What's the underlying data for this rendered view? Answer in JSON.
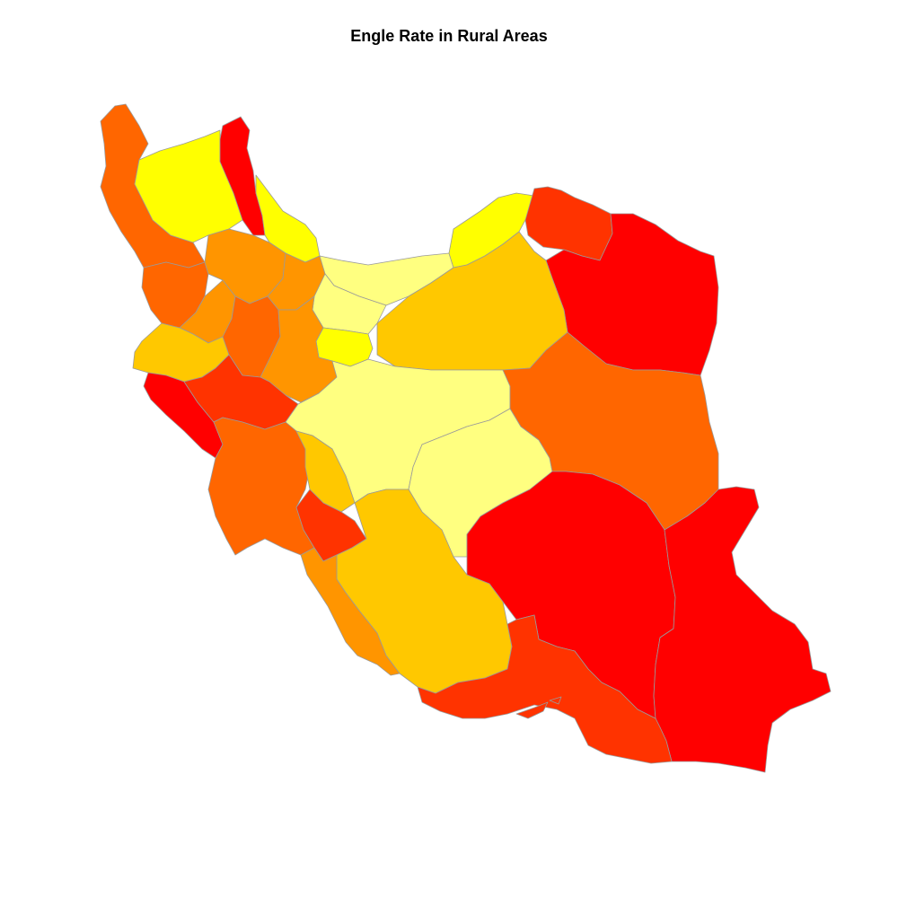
{
  "title": "Engle Rate in Rural Areas",
  "palette": {
    "yellow_light": "#FFFF80",
    "yellow": "#FFFF00",
    "gold": "#FFC800",
    "orange_light": "#FF9500",
    "orange": "#FF6600",
    "red_orange": "#FF3300",
    "red": "#FF0000"
  },
  "border_color": "#9A9A9A",
  "regions": [
    {
      "id": "r01",
      "color": "#FF6600"
    },
    {
      "id": "r02",
      "color": "#FFFF00"
    },
    {
      "id": "r03",
      "color": "#FF0000"
    },
    {
      "id": "r04",
      "color": "#FFFF00"
    },
    {
      "id": "r05",
      "color": "#FF6600"
    },
    {
      "id": "r06",
      "color": "#FF9500"
    },
    {
      "id": "r07",
      "color": "#FF9500"
    },
    {
      "id": "r08",
      "color": "#FF9500"
    },
    {
      "id": "r09",
      "color": "#FFFF80"
    },
    {
      "id": "r10",
      "color": "#FFFF00"
    },
    {
      "id": "r11",
      "color": "#FF3300"
    },
    {
      "id": "r12",
      "color": "#FF0000"
    },
    {
      "id": "r13",
      "color": "#FFC800"
    },
    {
      "id": "r14",
      "color": "#FFFF80"
    },
    {
      "id": "r15",
      "color": "#FFFF00"
    },
    {
      "id": "r16",
      "color": "#FFC800"
    },
    {
      "id": "r17",
      "color": "#FF6600"
    },
    {
      "id": "r18",
      "color": "#FF9500"
    },
    {
      "id": "r19",
      "color": "#FF0000"
    },
    {
      "id": "r20",
      "color": "#FF3300"
    },
    {
      "id": "r21",
      "color": "#FFFF80"
    },
    {
      "id": "r22",
      "color": "#FFFF80"
    },
    {
      "id": "r23",
      "color": "#FF6600"
    },
    {
      "id": "r24",
      "color": "#FF6600"
    },
    {
      "id": "r25",
      "color": "#FFC800"
    },
    {
      "id": "r26",
      "color": "#FF3300"
    },
    {
      "id": "r27",
      "color": "#FFC800"
    },
    {
      "id": "r28",
      "color": "#FF9500"
    },
    {
      "id": "r29",
      "color": "#FF0000"
    },
    {
      "id": "r30",
      "color": "#FF0000"
    },
    {
      "id": "r31",
      "color": "#FF3300"
    }
  ]
}
